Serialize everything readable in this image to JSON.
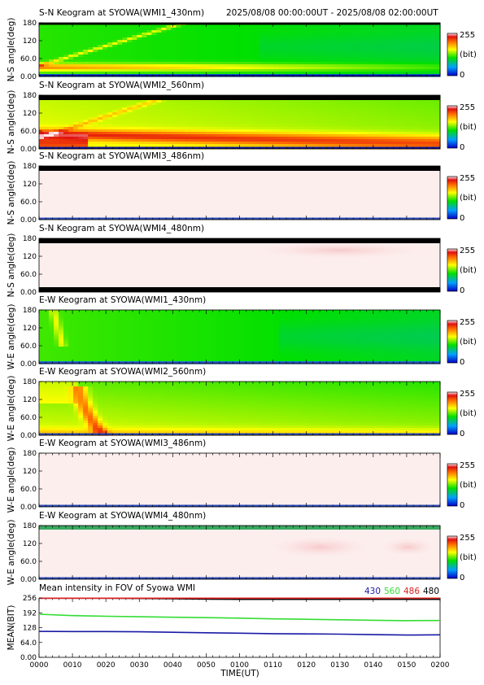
{
  "header": {
    "time_range": "2025/08/08 00:00:00UT - 2025/08/08 02:00:00UT"
  },
  "colorbar": {
    "max_label": "255",
    "unit_label": "(bit)",
    "min_label": "0"
  },
  "chart_data": {
    "type": "heatmap",
    "x_ticks": [
      "0000",
      "0010",
      "0020",
      "0030",
      "0040",
      "0050",
      "0100",
      "0110",
      "0120",
      "0130",
      "0140",
      "0150",
      "0200"
    ],
    "xlabel": "TIME(UT)",
    "panels": [
      {
        "title": "S-N Keogram at SYOWA(WMI1_430nm)",
        "ylabel": "N-S angle(deg)",
        "y_ticks": [
          "180",
          "120",
          "60.0",
          "0.00"
        ],
        "ylim": [
          0,
          180
        ],
        "colorbar": [
          0,
          255
        ],
        "style": "green_430"
      },
      {
        "title": "S-N Keogram at SYOWA(WMI2_560nm)",
        "ylabel": "N-S angle(deg)",
        "y_ticks": [
          "180",
          "120",
          "60.0",
          "0.00"
        ],
        "ylim": [
          0,
          180
        ],
        "colorbar": [
          0,
          255
        ],
        "style": "sat_560"
      },
      {
        "title": "S-N Keogram at SYOWA(WMI3_486nm)",
        "ylabel": "N-S angle(deg)",
        "y_ticks": [
          "180",
          "120",
          "60.0",
          "0.00"
        ],
        "ylim": [
          0,
          180
        ],
        "colorbar": [
          0,
          255
        ],
        "style": "pale"
      },
      {
        "title": "S-N Keogram at SYOWA(WMI4_480nm)",
        "ylabel": "N-S angle(deg)",
        "y_ticks": [
          "180",
          "120",
          "60.0",
          "0.00"
        ],
        "ylim": [
          0,
          180
        ],
        "colorbar": [
          0,
          255
        ],
        "style": "pale_blob"
      },
      {
        "title": "E-W Keogram at SYOWA(WMI1_430nm)",
        "ylabel": "W-E angle(deg)",
        "y_ticks": [
          "180",
          "120",
          "60.0",
          "0.00"
        ],
        "ylim": [
          0,
          180
        ],
        "colorbar": [
          0,
          255
        ],
        "style": "green_ew"
      },
      {
        "title": "E-W Keogram at SYOWA(WMI2_560nm)",
        "ylabel": "W-E angle(deg)",
        "y_ticks": [
          "180",
          "120",
          "60.0",
          "0.00"
        ],
        "ylim": [
          0,
          180
        ],
        "colorbar": [
          0,
          255
        ],
        "style": "yellow_ew"
      },
      {
        "title": "E-W Keogram at SYOWA(WMI3_486nm)",
        "ylabel": "W-E angle(deg)",
        "y_ticks": [
          "180",
          "120",
          "60.0",
          "0.00"
        ],
        "ylim": [
          0,
          180
        ],
        "colorbar": [
          0,
          255
        ],
        "style": "pale"
      },
      {
        "title": "E-W Keogram at SYOWA(WMI4_480nm)",
        "ylabel": "W-E angle(deg)",
        "y_ticks": [
          "180",
          "120",
          "60.0",
          "0.00"
        ],
        "ylim": [
          0,
          180
        ],
        "colorbar": [
          0,
          255
        ],
        "style": "pale_ew4"
      }
    ],
    "mean_panel": {
      "type": "line",
      "title": "Mean intensity in FOV of Syowa WMI",
      "ylabel": "MEAN(BIT)",
      "y_ticks": [
        "256",
        "192",
        "128",
        "64.0",
        "0.00"
      ],
      "ylim": [
        0,
        256
      ],
      "x_minutes": [
        0,
        10,
        20,
        30,
        40,
        50,
        60,
        70,
        80,
        90,
        100,
        110,
        120
      ],
      "series": [
        {
          "name": "430",
          "color": "#1a1aa6",
          "values": [
            112,
            111,
            111,
            110,
            108,
            106,
            104,
            102,
            101,
            100,
            98,
            96,
            97
          ]
        },
        {
          "name": "560",
          "color": "#33dd33",
          "values": [
            186,
            180,
            177,
            175,
            173,
            171,
            169,
            166,
            164,
            162,
            160,
            158,
            159
          ]
        },
        {
          "name": "486",
          "color": "#dd2222",
          "values": [
            255,
            255,
            255,
            255,
            255,
            255,
            255,
            255,
            255,
            255,
            255,
            255,
            255
          ]
        },
        {
          "name": "480",
          "color": "#000000",
          "values": [
            255,
            255,
            255,
            254,
            253,
            251,
            250,
            250,
            250,
            250,
            250,
            250,
            250
          ]
        }
      ]
    }
  }
}
